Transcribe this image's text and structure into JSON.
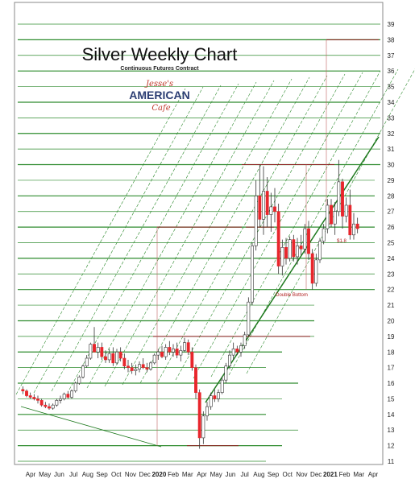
{
  "chart_data": {
    "type": "candlestick",
    "title": "Silver Weekly Chart",
    "subtitle": "Continuous Futures Contract",
    "logo": {
      "line1": "Jesse's",
      "line2": "AMERICAN",
      "line3": "Cafe"
    },
    "ylim": [
      10.5,
      39.5
    ],
    "y_ticks": [
      11,
      12,
      13,
      14,
      15,
      16,
      17,
      18,
      19,
      20,
      21,
      22,
      23,
      24,
      25,
      26,
      27,
      28,
      29,
      30,
      31,
      32,
      33,
      34,
      35,
      36,
      37,
      38,
      39
    ],
    "x_labels": [
      "Apr",
      "May",
      "Jun",
      "Jul",
      "Aug",
      "Sep",
      "Oct",
      "Nov",
      "Dec",
      "2020",
      "Feb",
      "Mar",
      "Apr",
      "May",
      "Jun",
      "Jul",
      "Aug",
      "Sep",
      "Oct",
      "Nov",
      "Dec",
      "2021",
      "Feb",
      "Mar",
      "Apr"
    ],
    "annotations": [
      {
        "text": "Double Bottom",
        "color": "#b22222"
      },
      {
        "text": "$1.8",
        "color": "#b22222"
      }
    ],
    "colors": {
      "up": "#ffffff",
      "down": "#e8262c",
      "grid": "#2e8b2e",
      "resistance": "#8b1a1a"
    },
    "candles": [
      [
        15.6,
        15.8,
        15.3,
        15.5
      ],
      [
        15.5,
        15.6,
        15.1,
        15.2
      ],
      [
        15.2,
        15.4,
        15.0,
        15.1
      ],
      [
        15.1,
        15.3,
        14.9,
        15.0
      ],
      [
        15.0,
        15.2,
        14.7,
        14.9
      ],
      [
        14.9,
        15.0,
        14.5,
        14.6
      ],
      [
        14.6,
        14.8,
        14.4,
        14.5
      ],
      [
        14.5,
        14.7,
        14.3,
        14.4
      ],
      [
        14.4,
        14.7,
        14.3,
        14.6
      ],
      [
        14.6,
        15.0,
        14.5,
        14.9
      ],
      [
        14.9,
        15.2,
        14.7,
        15.0
      ],
      [
        15.0,
        15.4,
        14.9,
        15.3
      ],
      [
        15.3,
        15.5,
        15.0,
        15.1
      ],
      [
        15.1,
        15.6,
        15.0,
        15.5
      ],
      [
        15.5,
        16.1,
        15.4,
        16.0
      ],
      [
        16.0,
        16.5,
        15.9,
        16.4
      ],
      [
        16.4,
        17.2,
        16.3,
        17.1
      ],
      [
        17.1,
        17.8,
        17.0,
        17.6
      ],
      [
        17.6,
        18.6,
        17.5,
        18.5
      ],
      [
        18.5,
        19.6,
        18.2,
        18.0
      ],
      [
        18.0,
        18.6,
        17.6,
        18.3
      ],
      [
        18.3,
        18.6,
        17.5,
        17.7
      ],
      [
        17.7,
        18.1,
        17.3,
        17.5
      ],
      [
        17.5,
        18.2,
        17.3,
        17.9
      ],
      [
        17.9,
        18.3,
        17.1,
        17.3
      ],
      [
        17.3,
        18.2,
        17.2,
        18.0
      ],
      [
        18.0,
        18.3,
        17.4,
        17.6
      ],
      [
        17.6,
        17.9,
        16.9,
        17.1
      ],
      [
        17.1,
        17.5,
        16.7,
        17.0
      ],
      [
        17.0,
        17.3,
        16.6,
        16.8
      ],
      [
        16.8,
        17.2,
        16.5,
        16.9
      ],
      [
        16.9,
        17.4,
        16.7,
        17.2
      ],
      [
        17.2,
        17.6,
        16.9,
        17.0
      ],
      [
        17.0,
        17.3,
        16.7,
        16.9
      ],
      [
        16.9,
        17.4,
        16.8,
        17.3
      ],
      [
        17.3,
        17.9,
        17.2,
        17.8
      ],
      [
        17.8,
        18.2,
        17.5,
        18.0
      ],
      [
        18.0,
        18.4,
        17.6,
        17.7
      ],
      [
        17.7,
        18.5,
        17.5,
        18.3
      ],
      [
        18.3,
        18.7,
        17.8,
        18.0
      ],
      [
        18.0,
        18.5,
        17.7,
        18.2
      ],
      [
        18.2,
        18.6,
        17.6,
        17.8
      ],
      [
        17.8,
        18.4,
        17.4,
        18.1
      ],
      [
        18.1,
        18.9,
        18.0,
        18.6
      ],
      [
        18.6,
        18.8,
        17.8,
        18.0
      ],
      [
        18.0,
        18.3,
        16.8,
        17.0
      ],
      [
        17.0,
        17.2,
        15.0,
        15.4
      ],
      [
        15.4,
        15.6,
        11.8,
        12.5
      ],
      [
        12.5,
        14.2,
        12.1,
        13.9
      ],
      [
        13.9,
        14.8,
        13.6,
        14.5
      ],
      [
        14.5,
        15.4,
        14.3,
        15.2
      ],
      [
        15.2,
        15.6,
        14.8,
        15.0
      ],
      [
        15.0,
        15.6,
        14.8,
        15.4
      ],
      [
        15.4,
        16.4,
        15.3,
        16.2
      ],
      [
        16.2,
        17.3,
        16.0,
        17.1
      ],
      [
        17.1,
        18.1,
        16.9,
        17.8
      ],
      [
        17.8,
        18.6,
        17.5,
        18.2
      ],
      [
        18.2,
        18.4,
        17.8,
        18.0
      ],
      [
        18.0,
        18.6,
        17.7,
        18.4
      ],
      [
        18.4,
        19.3,
        18.2,
        19.1
      ],
      [
        19.1,
        21.5,
        19.0,
        21.2
      ],
      [
        21.2,
        25.0,
        21.0,
        24.8
      ],
      [
        24.8,
        29.0,
        24.5,
        28.0
      ],
      [
        28.0,
        30.0,
        26.0,
        26.5
      ],
      [
        26.5,
        29.9,
        25.5,
        28.3
      ],
      [
        28.3,
        29.2,
        26.0,
        26.8
      ],
      [
        26.8,
        28.2,
        25.7,
        27.3
      ],
      [
        27.3,
        28.5,
        26.3,
        27.0
      ],
      [
        27.0,
        27.5,
        23.0,
        23.5
      ],
      [
        23.5,
        25.2,
        22.9,
        24.7
      ],
      [
        24.7,
        25.3,
        23.6,
        24.0
      ],
      [
        24.0,
        25.4,
        23.8,
        25.2
      ],
      [
        25.2,
        25.5,
        23.8,
        24.1
      ],
      [
        24.1,
        25.3,
        23.6,
        24.8
      ],
      [
        24.8,
        25.5,
        24.2,
        24.6
      ],
      [
        24.6,
        26.2,
        24.3,
        25.9
      ],
      [
        25.9,
        26.4,
        23.9,
        24.3
      ],
      [
        24.3,
        24.6,
        22.0,
        22.4
      ],
      [
        22.4,
        24.3,
        22.2,
        23.9
      ],
      [
        23.9,
        25.3,
        23.7,
        25.1
      ],
      [
        25.1,
        26.2,
        24.9,
        25.9
      ],
      [
        25.9,
        27.8,
        25.6,
        27.4
      ],
      [
        27.4,
        27.8,
        26.0,
        26.2
      ],
      [
        26.2,
        27.6,
        25.5,
        27.0
      ],
      [
        27.0,
        30.3,
        26.7,
        28.9
      ],
      [
        28.9,
        29.1,
        25.9,
        26.7
      ],
      [
        26.7,
        27.9,
        26.3,
        27.4
      ],
      [
        27.4,
        28.4,
        25.2,
        25.5
      ],
      [
        25.5,
        26.9,
        25.2,
        26.2
      ],
      [
        26.2,
        26.6,
        25.6,
        25.9
      ]
    ]
  }
}
